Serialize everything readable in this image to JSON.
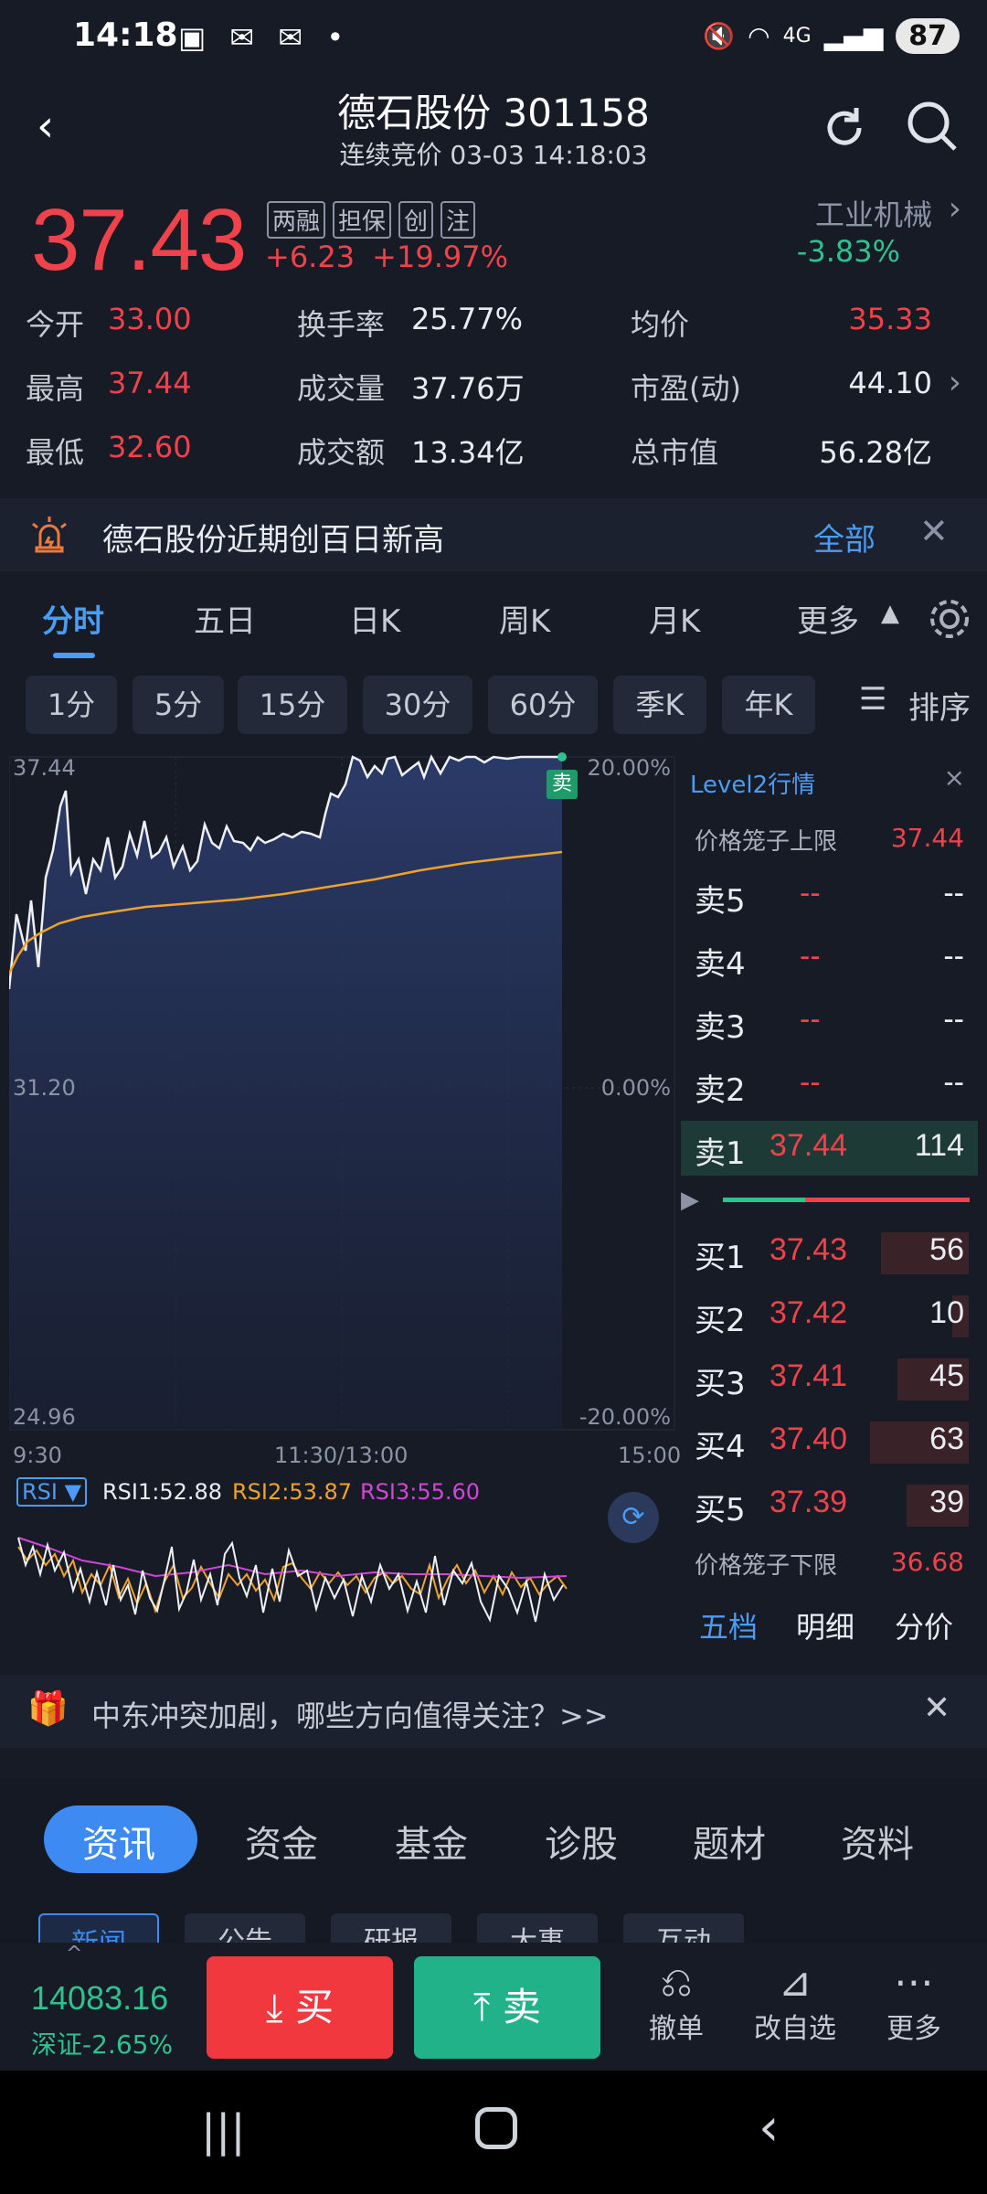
{
  "status_bar": {
    "time": "14:18",
    "battery": "87",
    "network": "4G"
  },
  "header": {
    "title": "德石股份 301158",
    "subtitle": "连续竞价 03-03 14:18:03"
  },
  "quote": {
    "price": "37.43",
    "change": "+6.23",
    "change_pct": "+19.97%",
    "tags": [
      "两融",
      "担保",
      "创",
      "注"
    ]
  },
  "industry": {
    "name": "工业机械",
    "change_pct": "-3.83%"
  },
  "stats": [
    {
      "label": "今开",
      "value": "33.00",
      "color": "red"
    },
    {
      "label": "换手率",
      "value": "25.77%",
      "color": "white"
    },
    {
      "label": "均价",
      "value": "35.33",
      "color": "red"
    },
    {
      "label": "最高",
      "value": "37.44",
      "color": "red"
    },
    {
      "label": "成交量",
      "value": "37.76万",
      "color": "white"
    },
    {
      "label": "市盈(动)",
      "value": "44.10",
      "color": "white"
    },
    {
      "label": "最低",
      "value": "32.60",
      "color": "red"
    },
    {
      "label": "成交额",
      "value": "13.34亿",
      "color": "white"
    },
    {
      "label": "总市值",
      "value": "56.28亿",
      "color": "white"
    }
  ],
  "notice": {
    "text": "德石股份近期创百日新高",
    "link": "全部"
  },
  "chart_tabs": [
    "分时",
    "五日",
    "日K",
    "周K",
    "月K",
    "更多"
  ],
  "period_pills": [
    "1分",
    "5分",
    "15分",
    "30分",
    "60分",
    "季K",
    "年K"
  ],
  "sort_label": "排序",
  "chart": {
    "y_top": "37.44",
    "y_mid": "31.20",
    "y_bot": "24.96",
    "pct_top": "20.00%",
    "pct_mid": "0.00%",
    "pct_bot": "-20.00%",
    "x_start": "9:30",
    "x_mid": "11:30/13:00",
    "x_end": "15:00",
    "sell_marker": "卖"
  },
  "rsi": {
    "name": "RSI",
    "rsi1": "RSI1:52.88",
    "rsi2": "RSI2:53.87",
    "rsi3": "RSI3:55.60"
  },
  "chart_data": {
    "type": "line",
    "x": [
      "9:30",
      "11:30/13:00",
      "15:00"
    ],
    "series": [],
    "ylim": [
      24.96,
      37.44
    ]
  },
  "orderbook": {
    "title": "Level2行情",
    "upper_limit_label": "价格笼子上限",
    "upper_limit": "37.44",
    "lower_limit_label": "价格笼子下限",
    "lower_limit": "36.68",
    "asks": [
      {
        "label": "卖5",
        "price": "--",
        "qty": "--"
      },
      {
        "label": "卖4",
        "price": "--",
        "qty": "--"
      },
      {
        "label": "卖3",
        "price": "--",
        "qty": "--"
      },
      {
        "label": "卖2",
        "price": "--",
        "qty": "--"
      },
      {
        "label": "卖1",
        "price": "37.44",
        "qty": "114"
      }
    ],
    "bids": [
      {
        "label": "买1",
        "price": "37.43",
        "qty": "56"
      },
      {
        "label": "买2",
        "price": "37.42",
        "qty": "10"
      },
      {
        "label": "买3",
        "price": "37.41",
        "qty": "45"
      },
      {
        "label": "买4",
        "price": "37.40",
        "qty": "63"
      },
      {
        "label": "买5",
        "price": "37.39",
        "qty": "39"
      }
    ],
    "tabs": [
      "五档",
      "明细",
      "分价"
    ]
  },
  "promo": {
    "text": "中东冲突加剧，哪些方向值得关注？>>"
  },
  "section_tabs": [
    "资讯",
    "资金",
    "基金",
    "诊股",
    "题材",
    "资料"
  ],
  "sub_tabs": [
    "新闻",
    "公告",
    "研报",
    "大事",
    "互动"
  ],
  "bottom": {
    "index_value": "14083.16",
    "index_label": "深证-2.65%",
    "buy": "买",
    "sell": "卖",
    "actions": [
      "撤单",
      "改自选",
      "更多"
    ]
  }
}
